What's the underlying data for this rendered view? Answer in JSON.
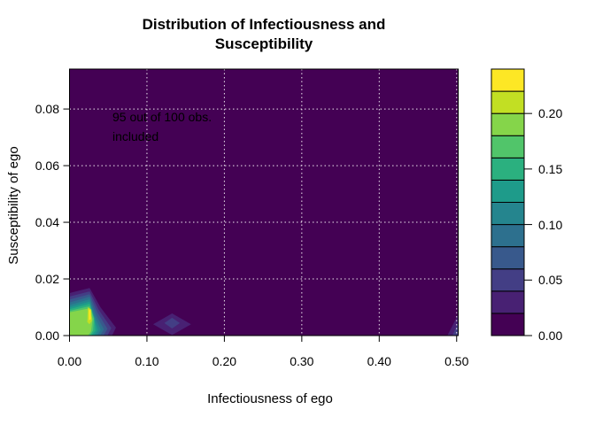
{
  "figure": {
    "title_line1": "Distribution of Infectiousness and",
    "title_line2": "Susceptibility",
    "x_axis_label": "Infectiousness of ego",
    "y_axis_label": "Susceptibility of ego",
    "annotation_line1": "95 out of 100 obs.",
    "annotation_line2": "included"
  },
  "chart_data": {
    "type": "heatmap",
    "subtype": "filled-contour-2d-density",
    "title": "Distribution of Infectiousness and Susceptibility",
    "xlabel": "Infectiousness of ego",
    "ylabel": "Susceptibility of ego",
    "annotation": "95 out of 100 obs. included",
    "xlim": [
      0,
      0.502
    ],
    "ylim": [
      0,
      0.0941
    ],
    "x_tick_values": [
      0,
      0.1,
      0.2,
      0.3,
      0.4,
      0.5
    ],
    "x_tick_labels": [
      "0.00",
      "0.10",
      "0.20",
      "0.30",
      "0.40",
      "0.50"
    ],
    "y_tick_values": [
      0,
      0.02,
      0.04,
      0.06,
      0.08
    ],
    "y_tick_labels": [
      "0.00",
      "0.02",
      "0.04",
      "0.06",
      "0.08"
    ],
    "grid": {
      "shown": true,
      "style": "dotted",
      "color": "#ffffff"
    },
    "background_color": "#440154",
    "text_color": "#000000",
    "colorbar": {
      "position": "right",
      "level_min": 0.0,
      "level_max": 0.24,
      "level_step": 0.02,
      "tick_values": [
        0.0,
        0.05,
        0.1,
        0.15,
        0.2
      ],
      "tick_labels": [
        "0.00",
        "0.05",
        "0.10",
        "0.15",
        "0.20"
      ],
      "colors_bottom_to_top": [
        "#440154",
        "#482173",
        "#433E85",
        "#38598C",
        "#2D708E",
        "#25858E",
        "#1E9B8A",
        "#2BB07F",
        "#51C56A",
        "#85D54A",
        "#C2DF23",
        "#FDE725"
      ]
    },
    "density_features": [
      {
        "name": "primary-peak",
        "peak_x": 0.026,
        "peak_y": 0.008,
        "peak_level": 0.23,
        "x_range": [
          0,
          0.06
        ],
        "y_range": [
          0,
          0.017
        ]
      },
      {
        "name": "secondary-bump",
        "x": 0.132,
        "y": 0.004,
        "level": 0.05
      },
      {
        "name": "right-edge-bump",
        "x": 0.5,
        "y": 0.003,
        "level": 0.05
      }
    ],
    "contour_bands": [
      {
        "level": 0.02,
        "color": "#482173",
        "pts": [
          [
            0,
            0.015
          ],
          [
            0.026,
            0.0168
          ],
          [
            0.04,
            0.01
          ],
          [
            0.06,
            0.0028
          ],
          [
            0.055,
            0
          ],
          [
            0,
            0
          ]
        ]
      },
      {
        "level": 0.04,
        "color": "#433E85",
        "pts": [
          [
            0,
            0.0138
          ],
          [
            0.026,
            0.0156
          ],
          [
            0.038,
            0.009
          ],
          [
            0.054,
            0.0026
          ],
          [
            0.049,
            0
          ],
          [
            0,
            0
          ]
        ]
      },
      {
        "level": 0.06,
        "color": "#38598C",
        "pts": [
          [
            0,
            0.0127
          ],
          [
            0.026,
            0.0146
          ],
          [
            0.036,
            0.0082
          ],
          [
            0.049,
            0.0024
          ],
          [
            0.044,
            0
          ],
          [
            0,
            0
          ]
        ]
      },
      {
        "level": 0.08,
        "color": "#2D708E",
        "pts": [
          [
            0,
            0.0117
          ],
          [
            0.026,
            0.0137
          ],
          [
            0.034,
            0.0075
          ],
          [
            0.0445,
            0.0022
          ],
          [
            0.0395,
            0
          ],
          [
            0,
            0
          ]
        ]
      },
      {
        "level": 0.1,
        "color": "#25858E",
        "pts": [
          [
            0,
            0.0108
          ],
          [
            0.026,
            0.0128
          ],
          [
            0.0325,
            0.0068
          ],
          [
            0.0405,
            0.002
          ],
          [
            0.0355,
            0
          ],
          [
            0,
            0
          ]
        ]
      },
      {
        "level": 0.12,
        "color": "#1E9B8A",
        "pts": [
          [
            0,
            0.01
          ],
          [
            0.026,
            0.012
          ],
          [
            0.0315,
            0.0063
          ],
          [
            0.0368,
            0.0019
          ],
          [
            0.0318,
            0
          ],
          [
            0,
            0
          ]
        ]
      },
      {
        "level": 0.14,
        "color": "#2BB07F",
        "pts": [
          [
            0,
            0.0093
          ],
          [
            0.026,
            0.0112
          ],
          [
            0.032,
            0.0062
          ],
          [
            0.0335,
            0.0018
          ],
          [
            0.0285,
            0
          ],
          [
            0,
            0
          ]
        ]
      },
      {
        "level": 0.16,
        "color": "#51C56A",
        "pts": [
          [
            0,
            0.0087
          ],
          [
            0.026,
            0.0104
          ],
          [
            0.0315,
            0.006
          ],
          [
            0.0305,
            0.0018
          ],
          [
            0.0265,
            0
          ],
          [
            0,
            0
          ]
        ]
      },
      {
        "level": 0.18,
        "color": "#85D54A",
        "pts": [
          [
            0,
            0.0082
          ],
          [
            0.026,
            0.0096
          ],
          [
            0.0298,
            0.0058
          ],
          [
            0.0278,
            0.0014
          ],
          [
            0.0238,
            0
          ],
          [
            0,
            0
          ]
        ]
      },
      {
        "level": 0.2,
        "color": "#C2DF23",
        "pts": [
          [
            0.0238,
            0.01
          ],
          [
            0.0282,
            0.0092
          ],
          [
            0.0288,
            0.0052
          ],
          [
            0.0258,
            0.004
          ],
          [
            0.023,
            0.0048
          ]
        ]
      },
      {
        "level": 0.22,
        "color": "#FDE725",
        "pts": [
          [
            0.025,
            0.0094
          ],
          [
            0.0272,
            0.0088
          ],
          [
            0.0276,
            0.0058
          ],
          [
            0.0252,
            0.0054
          ]
        ]
      },
      {
        "level": 0.02,
        "color": "#482173",
        "pts": [
          [
            0.108,
            0.004
          ],
          [
            0.1325,
            0.0078
          ],
          [
            0.157,
            0.004
          ],
          [
            0.1325,
            0.0002
          ]
        ]
      },
      {
        "level": 0.04,
        "color": "#433E85",
        "pts": [
          [
            0.1225,
            0.0044
          ],
          [
            0.1325,
            0.0063
          ],
          [
            0.1425,
            0.0044
          ],
          [
            0.1325,
            0.0025
          ]
        ]
      },
      {
        "level": 0.02,
        "color": "#482173",
        "pts": [
          [
            0.488,
            0
          ],
          [
            0.502,
            0
          ],
          [
            0.502,
            0.0075
          ],
          [
            0.4955,
            0.004
          ]
        ]
      },
      {
        "level": 0.04,
        "color": "#433E85",
        "pts": [
          [
            0.4945,
            0
          ],
          [
            0.502,
            0
          ],
          [
            0.502,
            0.0045
          ]
        ]
      }
    ]
  }
}
